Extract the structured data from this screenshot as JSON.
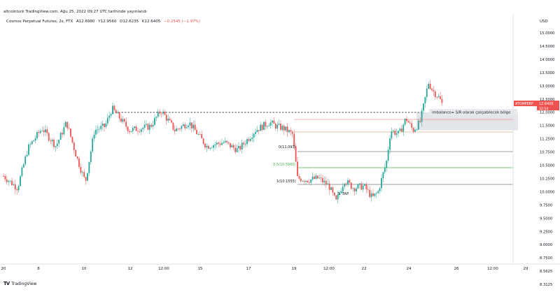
{
  "header": {
    "publish_text": "altcointurk TradingView.com, Ağu 25, 2022 09:27 UTC tarihinde yayınlandı"
  },
  "legend": {
    "symbol": "Cosmos Perpetual Futures, 2s, FTX",
    "open": "A12.6980",
    "high": "Y12.9560",
    "low": "D12.6235",
    "close": "K12.6405",
    "change": "−0.2545 (−1.97%)"
  },
  "price_axis": {
    "currency": "USD",
    "ticks": [
      "15.0000",
      "14.5000",
      "14.0000",
      "13.5000",
      "13.0000",
      "12.5000",
      "12.0000",
      "11.5000",
      "11.2500",
      "10.7500",
      "10.5000",
      "10.2500",
      "10.0000",
      "9.7500",
      "9.5000",
      "9.2500",
      "9.0000",
      "8.7500",
      "8.5625",
      "8.3125"
    ],
    "last_symbol": "ATOMPERP",
    "last_price": "12.6405",
    "countdown": "32:54",
    "up_color": "#26a69a",
    "down_color": "#ef5350"
  },
  "time_axis": {
    "ticks": [
      "20",
      "8",
      "10",
      "12",
      "12:00",
      "15",
      "17",
      "19",
      "12:00",
      "22",
      "24",
      "26",
      "12:00",
      "29"
    ]
  },
  "fib_labels": {
    "fib0": "0(11.093)",
    "fib05": "0.5(10.5960)",
    "fib1": "1(10.1555)"
  },
  "annotations": {
    "imbalance": "imbalance= S/R olarak çalışabilecek bölge",
    "tap": "3. TAP"
  },
  "footer": {
    "logo": "TV",
    "brand": "TradingView"
  },
  "chart_data": {
    "type": "candlestick",
    "symbol": "ATOMPERP",
    "timeframe": "2h",
    "exchange": "FTX",
    "ylim": [
      8.1,
      15.5
    ],
    "key_levels": {
      "imbalance_top": 12.45,
      "imbalance_bottom": 12.0,
      "support_line": 11.7,
      "fib_0": 11.093,
      "fib_0_5": 10.596,
      "fib_1": 10.1555,
      "breakout_dashed": 12.45
    },
    "last_ohlc": {
      "open": 12.698,
      "high": 12.956,
      "low": 12.6235,
      "close": 12.6405,
      "change": -0.2545,
      "change_pct": -1.97
    }
  }
}
